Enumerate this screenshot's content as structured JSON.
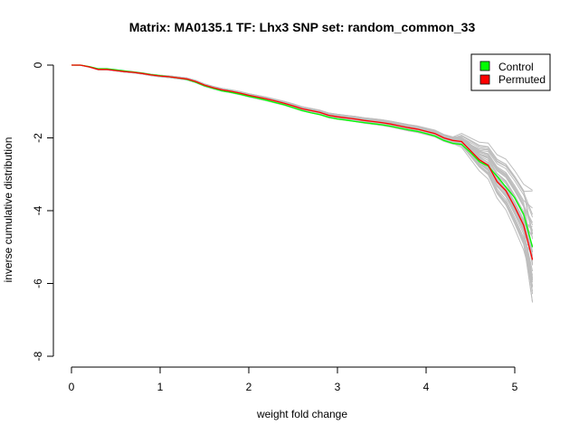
{
  "chart_data": {
    "type": "line",
    "title": "Matrix: MA0135.1 TF: Lhx3 SNP set: random_common_33",
    "xlabel": "weight fold change",
    "ylabel": "inverse cumulative distribution",
    "xlim": [
      0,
      5.2
    ],
    "ylim": [
      -8,
      0
    ],
    "x_ticks": [
      "0",
      "1",
      "2",
      "3",
      "4",
      "5"
    ],
    "y_ticks": [
      "0",
      "-2",
      "-4",
      "-6",
      "-8"
    ],
    "grid": false,
    "legend_position": "top-right",
    "legend": [
      {
        "label": "Control",
        "color": "#00ff00"
      },
      {
        "label": "Permuted",
        "color": "#ff0000"
      }
    ],
    "series": [
      {
        "name": "Permuted",
        "color": "#ff0000",
        "x": [
          0,
          0.1,
          0.2,
          0.3,
          0.4,
          0.5,
          0.6,
          0.7,
          0.8,
          0.9,
          1.0,
          1.1,
          1.2,
          1.3,
          1.4,
          1.5,
          1.6,
          1.7,
          1.8,
          1.9,
          2.0,
          2.1,
          2.2,
          2.3,
          2.4,
          2.5,
          2.6,
          2.7,
          2.8,
          2.9,
          3.0,
          3.1,
          3.2,
          3.3,
          3.4,
          3.5,
          3.6,
          3.7,
          3.8,
          3.9,
          4.0,
          4.1,
          4.2,
          4.3,
          4.4,
          4.5,
          4.6,
          4.7,
          4.8,
          4.9,
          5.0,
          5.1,
          5.2
        ],
        "values": [
          0,
          0,
          -0.05,
          -0.12,
          -0.12,
          -0.15,
          -0.18,
          -0.2,
          -0.23,
          -0.27,
          -0.3,
          -0.32,
          -0.35,
          -0.38,
          -0.45,
          -0.55,
          -0.62,
          -0.68,
          -0.72,
          -0.77,
          -0.83,
          -0.88,
          -0.93,
          -0.99,
          -1.05,
          -1.12,
          -1.2,
          -1.25,
          -1.3,
          -1.38,
          -1.42,
          -1.45,
          -1.48,
          -1.52,
          -1.55,
          -1.58,
          -1.62,
          -1.67,
          -1.72,
          -1.76,
          -1.82,
          -1.88,
          -2.0,
          -2.07,
          -2.1,
          -2.35,
          -2.6,
          -2.75,
          -3.2,
          -3.45,
          -3.9,
          -4.4,
          -5.35
        ]
      },
      {
        "name": "Control",
        "color": "#00ff00",
        "x": [
          0,
          0.1,
          0.2,
          0.3,
          0.4,
          0.5,
          0.6,
          0.7,
          0.8,
          0.9,
          1.0,
          1.1,
          1.2,
          1.3,
          1.4,
          1.5,
          1.6,
          1.7,
          1.8,
          1.9,
          2.0,
          2.1,
          2.2,
          2.3,
          2.4,
          2.5,
          2.6,
          2.7,
          2.8,
          2.9,
          3.0,
          3.1,
          3.2,
          3.3,
          3.4,
          3.5,
          3.6,
          3.7,
          3.8,
          3.9,
          4.0,
          4.1,
          4.2,
          4.3,
          4.4,
          4.5,
          4.6,
          4.7,
          4.8,
          4.9,
          5.0,
          5.1,
          5.2
        ],
        "values": [
          0,
          0,
          -0.04,
          -0.1,
          -0.1,
          -0.13,
          -0.16,
          -0.19,
          -0.22,
          -0.26,
          -0.29,
          -0.32,
          -0.35,
          -0.39,
          -0.47,
          -0.57,
          -0.64,
          -0.71,
          -0.75,
          -0.8,
          -0.86,
          -0.91,
          -0.97,
          -1.03,
          -1.09,
          -1.17,
          -1.25,
          -1.31,
          -1.36,
          -1.43,
          -1.48,
          -1.51,
          -1.55,
          -1.58,
          -1.61,
          -1.64,
          -1.68,
          -1.73,
          -1.78,
          -1.82,
          -1.88,
          -1.95,
          -2.07,
          -2.15,
          -2.18,
          -2.4,
          -2.65,
          -2.78,
          -3.05,
          -3.35,
          -3.65,
          -4.1,
          -5.0
        ]
      }
    ],
    "background_lines_color": "#bebebe"
  }
}
